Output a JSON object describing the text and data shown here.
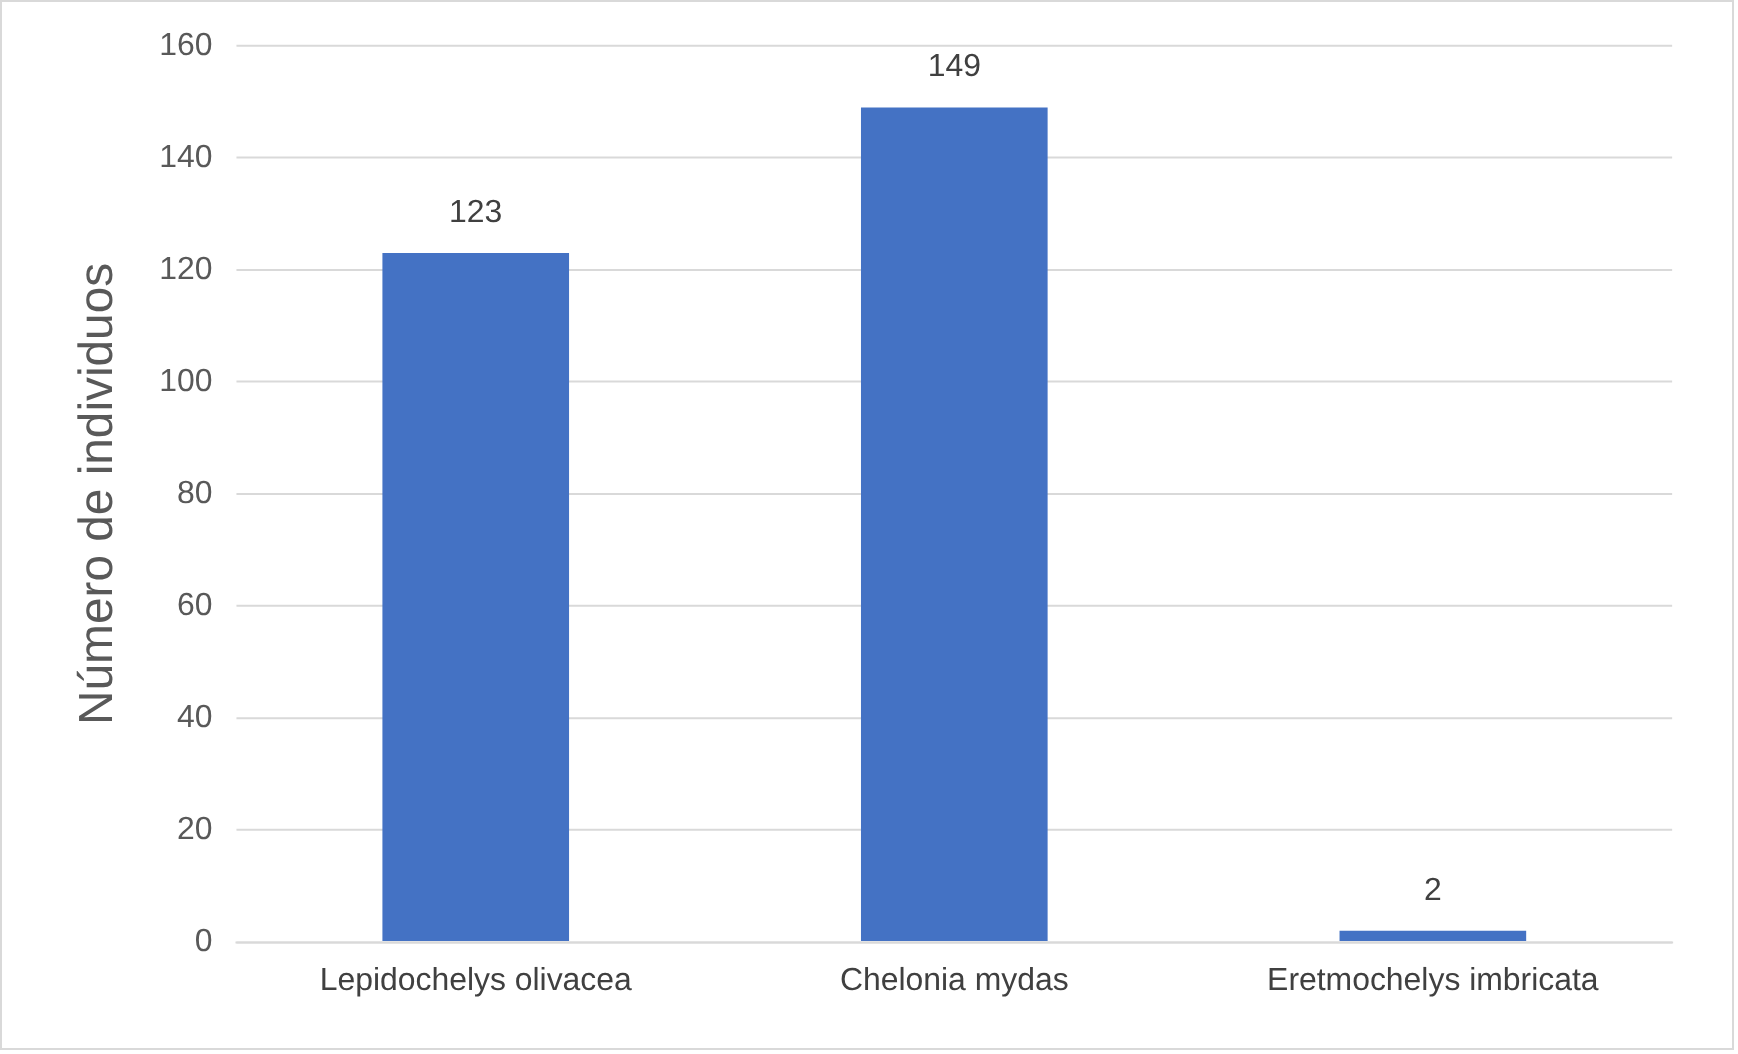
{
  "chart_data": {
    "type": "bar",
    "ylabel": "Número de individuos",
    "categories": [
      "Lepidochelys olivacea",
      "Chelonia mydas",
      "Eretmochelys imbricata"
    ],
    "values": [
      123,
      149,
      2
    ],
    "color": "#4472c4",
    "ylim": [
      0,
      160
    ],
    "yticks": [
      0,
      20,
      40,
      60,
      80,
      100,
      120,
      140,
      160
    ],
    "grid": "y",
    "data_labels": true,
    "legend": false
  }
}
